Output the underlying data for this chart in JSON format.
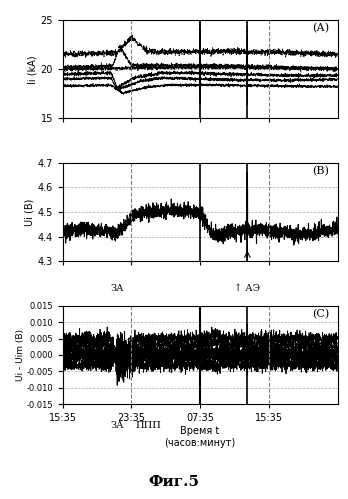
{
  "title": "Фиг.5",
  "xlabel": "Время t\n(часов:минут)",
  "xticks": [
    0,
    480,
    960,
    1440
  ],
  "xticklabels": [
    "15:35",
    "23:35",
    "07:35",
    "15:35"
  ],
  "xmax": 1920,
  "panel_A_label": "(А)",
  "panel_A_ylabel": "Ii (kA)",
  "panel_A_ylim": [
    15,
    25
  ],
  "panel_A_yticks": [
    15,
    20,
    25
  ],
  "panel_B_label": "(B)",
  "panel_B_ylabel": "Ui (В)",
  "panel_B_ylim": [
    4.3,
    4.7
  ],
  "panel_B_yticks": [
    4.3,
    4.4,
    4.5,
    4.6,
    4.7
  ],
  "panel_C_label": "(С)",
  "panel_C_ylabel": "Ui - Uim (В)",
  "panel_C_ylim": [
    -0.015,
    0.015
  ],
  "panel_C_yticks": [
    -0.015,
    -0.01,
    -0.005,
    0,
    0.005,
    0.01,
    0.015
  ],
  "bg_color": "#ffffff",
  "line_color": "#000000",
  "grid_color": "#aaaaaa"
}
